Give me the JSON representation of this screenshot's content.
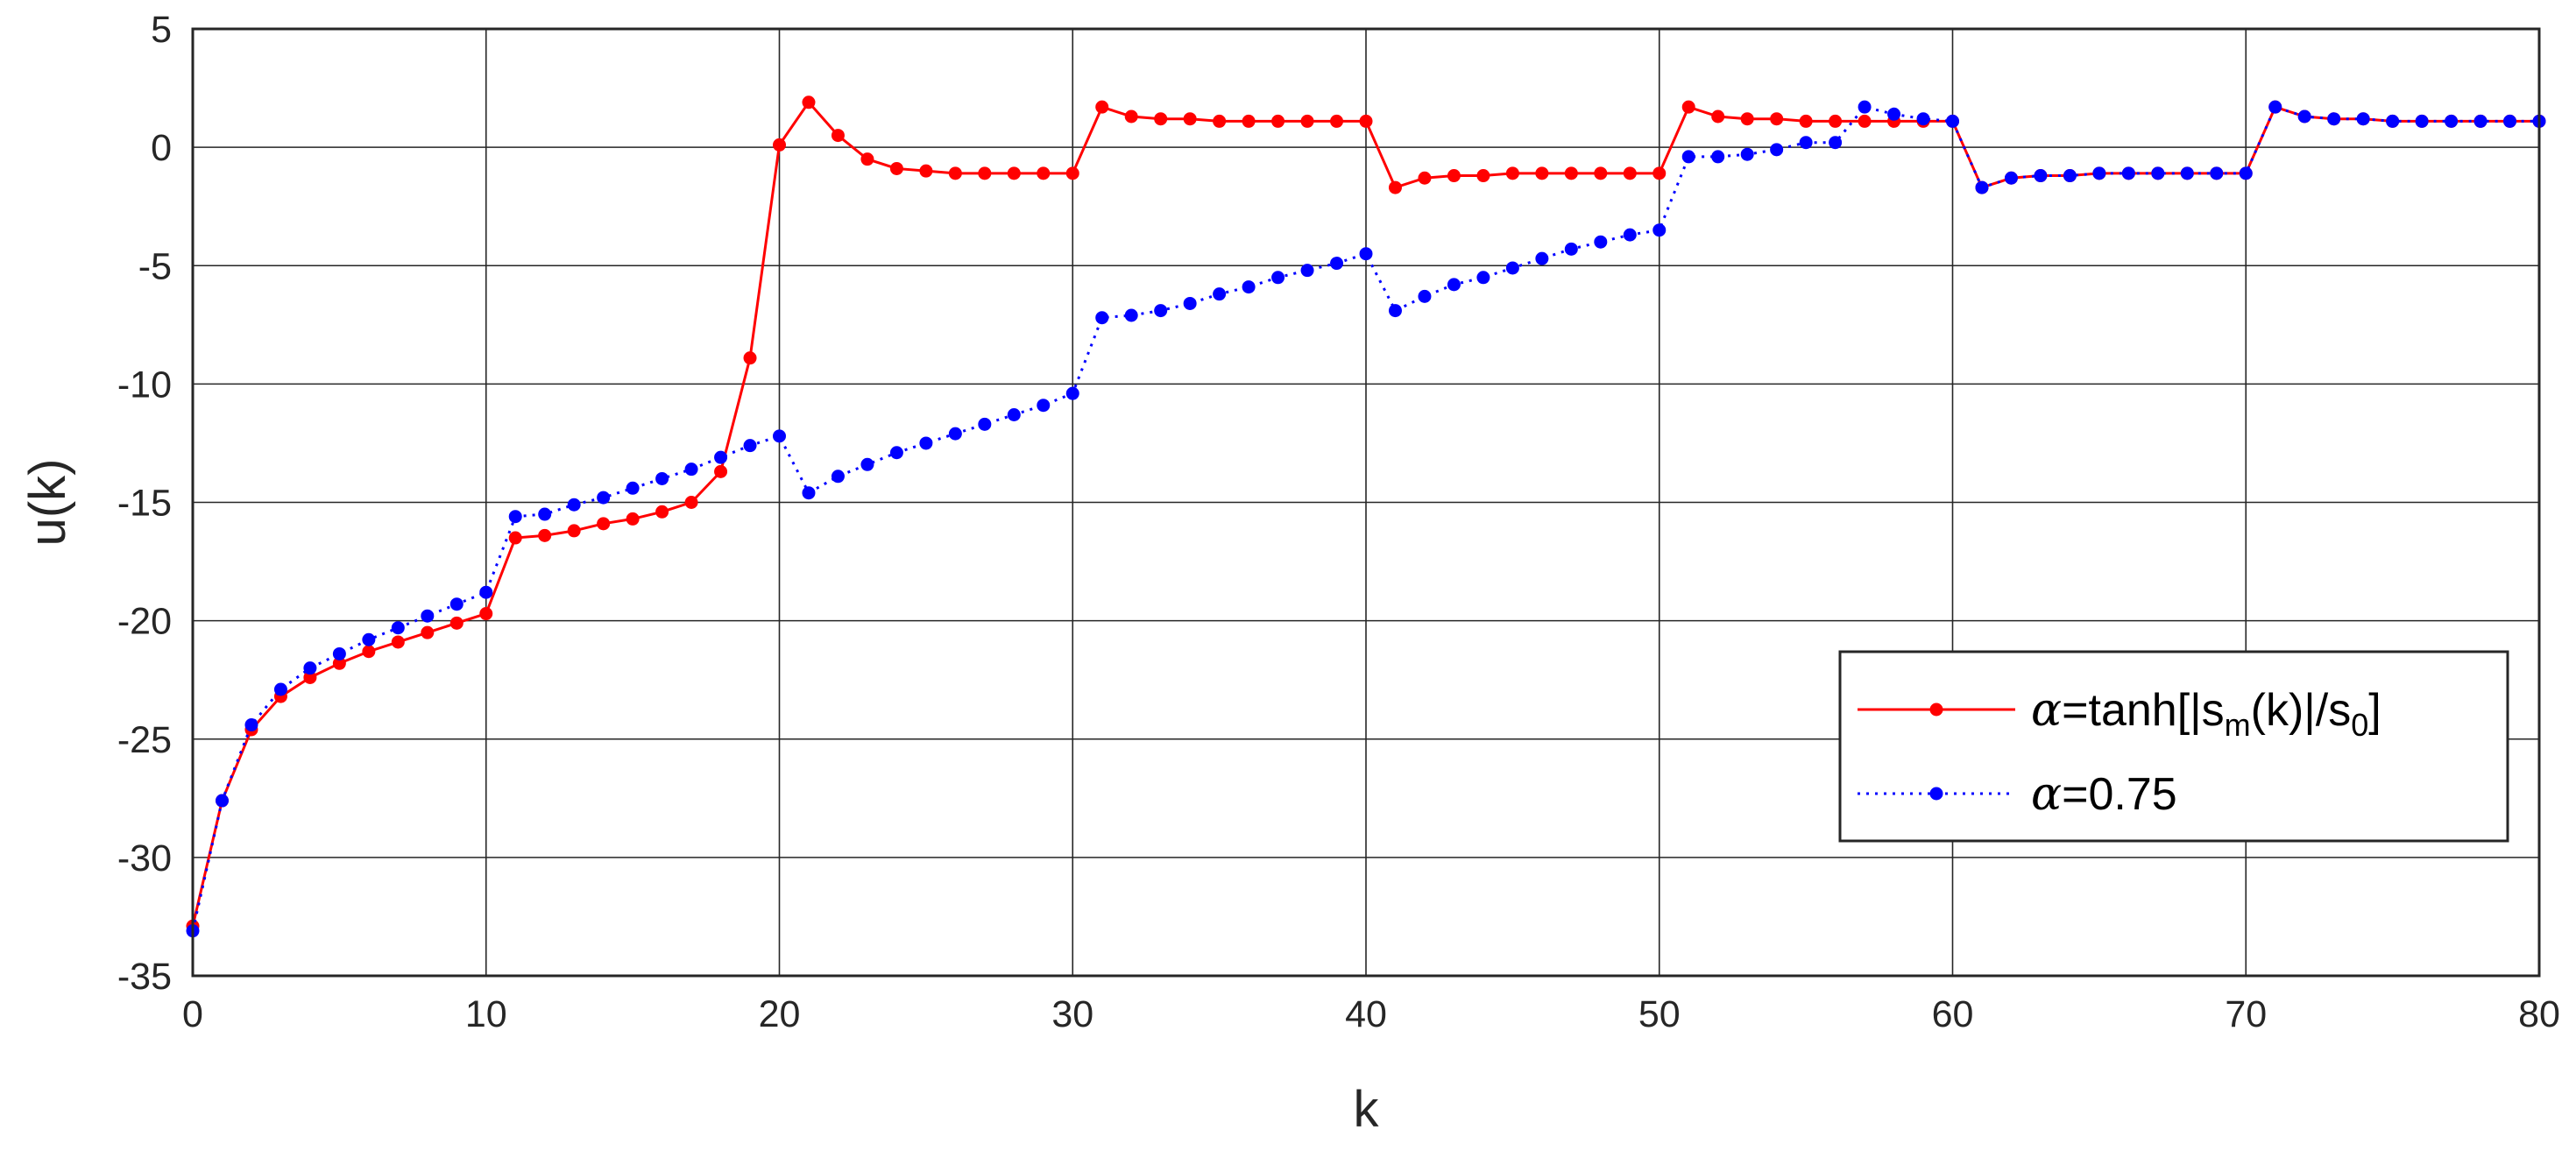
{
  "chart_data": {
    "type": "line",
    "xlabel": "k",
    "ylabel": "u(k)",
    "xlim": [
      0,
      80
    ],
    "ylim": [
      -35,
      5
    ],
    "xticks": [
      "0",
      "10",
      "20",
      "30",
      "40",
      "50",
      "60",
      "70",
      "80"
    ],
    "yticks": [
      "5",
      "0",
      "-5",
      "-10",
      "-15",
      "-20",
      "-25",
      "-30",
      "-35"
    ],
    "grid": true,
    "legend_position": "lower-right",
    "x": [
      0,
      1,
      2,
      3,
      4,
      5,
      6,
      7,
      8,
      9,
      10,
      11,
      12,
      13,
      14,
      15,
      16,
      17,
      18,
      19,
      20,
      21,
      22,
      23,
      24,
      25,
      26,
      27,
      28,
      29,
      30,
      31,
      32,
      33,
      34,
      35,
      36,
      37,
      38,
      39,
      40,
      41,
      42,
      43,
      44,
      45,
      46,
      47,
      48,
      49,
      50,
      51,
      52,
      53,
      54,
      55,
      56,
      57,
      58,
      59,
      60,
      61,
      62,
      63,
      64,
      65,
      66,
      67,
      68,
      69,
      70,
      71,
      72,
      73,
      74,
      75,
      76,
      77,
      78,
      79,
      80
    ],
    "series": [
      {
        "name_parts": [
          "α",
          "=tanh[|s",
          "m",
          "(k)|/s",
          "0",
          "]"
        ],
        "color": "#ff0000",
        "line_style": "solid",
        "values": [
          -32.9,
          -27.6,
          -24.6,
          -23.2,
          -22.4,
          -21.8,
          -21.3,
          -20.9,
          -20.5,
          -20.1,
          -19.7,
          -16.5,
          -16.4,
          -16.2,
          -15.9,
          -15.7,
          -15.4,
          -15.0,
          -13.7,
          -8.9,
          0.1,
          1.9,
          0.5,
          -0.5,
          -0.9,
          -1.0,
          -1.1,
          -1.1,
          -1.1,
          -1.1,
          -1.1,
          1.7,
          1.3,
          1.2,
          1.2,
          1.1,
          1.1,
          1.1,
          1.1,
          1.1,
          1.1,
          -1.7,
          -1.3,
          -1.2,
          -1.2,
          -1.1,
          -1.1,
          -1.1,
          -1.1,
          -1.1,
          -1.1,
          1.7,
          1.3,
          1.2,
          1.2,
          1.1,
          1.1,
          1.1,
          1.1,
          1.1,
          1.1,
          -1.7,
          -1.3,
          -1.2,
          -1.2,
          -1.1,
          -1.1,
          -1.1,
          -1.1,
          -1.1,
          -1.1,
          1.7,
          1.3,
          1.2,
          1.2,
          1.1,
          1.1,
          1.1,
          1.1,
          1.1,
          1.1
        ]
      },
      {
        "name_parts": [
          "α",
          "=0.75"
        ],
        "color": "#0000ff",
        "line_style": "dotted",
        "values": [
          -33.1,
          -27.6,
          -24.4,
          -22.9,
          -22.0,
          -21.4,
          -20.8,
          -20.3,
          -19.8,
          -19.3,
          -18.8,
          -15.6,
          -15.5,
          -15.1,
          -14.8,
          -14.4,
          -14.0,
          -13.6,
          -13.1,
          -12.6,
          -12.2,
          -14.6,
          -13.9,
          -13.4,
          -12.9,
          -12.5,
          -12.1,
          -11.7,
          -11.3,
          -10.9,
          -10.4,
          -7.2,
          -7.1,
          -6.9,
          -6.6,
          -6.2,
          -5.9,
          -5.5,
          -5.2,
          -4.9,
          -4.5,
          -6.9,
          -6.3,
          -5.8,
          -5.5,
          -5.1,
          -4.7,
          -4.3,
          -4.0,
          -3.7,
          -3.5,
          -0.4,
          -0.4,
          -0.3,
          -0.1,
          0.2,
          0.2,
          1.7,
          1.4,
          1.2,
          1.1,
          -1.7,
          -1.3,
          -1.2,
          -1.2,
          -1.1,
          -1.1,
          -1.1,
          -1.1,
          -1.1,
          -1.1,
          1.7,
          1.3,
          1.2,
          1.2,
          1.1,
          1.1,
          1.1,
          1.1,
          1.1,
          1.1
        ]
      }
    ]
  }
}
